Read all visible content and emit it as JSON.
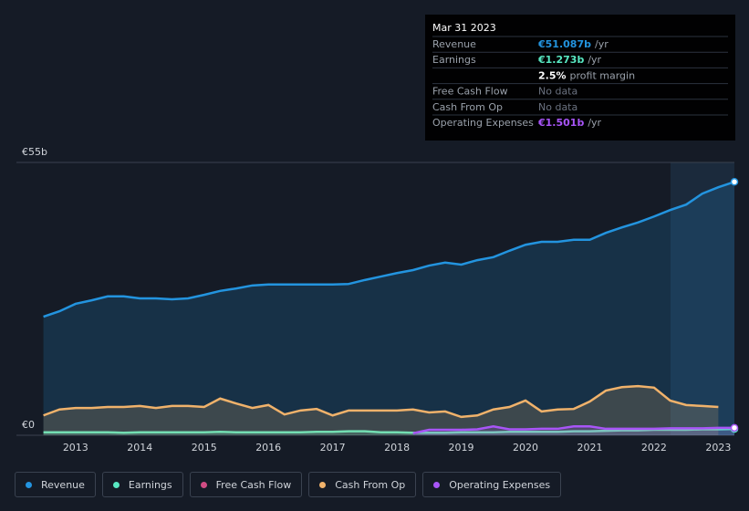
{
  "chart_data": {
    "type": "line",
    "x": [
      2012.5,
      2012.75,
      2013,
      2013.25,
      2013.5,
      2013.75,
      2014,
      2014.25,
      2014.5,
      2014.75,
      2015,
      2015.25,
      2015.5,
      2015.75,
      2016,
      2016.25,
      2016.5,
      2016.75,
      2017,
      2017.25,
      2017.5,
      2017.75,
      2018,
      2018.25,
      2018.5,
      2018.75,
      2019,
      2019.25,
      2019.5,
      2019.75,
      2020,
      2020.25,
      2020.5,
      2020.75,
      2021,
      2021.25,
      2021.5,
      2021.75,
      2022,
      2022.25,
      2022.5,
      2022.75,
      2023,
      2023.25
    ],
    "xlim": [
      2012.08,
      2023.25
    ],
    "xticks": [
      2013,
      2014,
      2015,
      2016,
      2017,
      2018,
      2019,
      2020,
      2021,
      2022,
      2023
    ],
    "ylim": [
      0,
      55
    ],
    "yticks": [
      {
        "value": 0,
        "label": "€0"
      },
      {
        "value": 55,
        "label": "€55b"
      }
    ],
    "series": [
      {
        "name": "Revenue",
        "color": "#2394df",
        "values": [
          23.9,
          25.0,
          26.5,
          27.2,
          28.0,
          28.0,
          27.6,
          27.6,
          27.4,
          27.6,
          28.3,
          29.1,
          29.6,
          30.2,
          30.4,
          30.4,
          30.4,
          30.4,
          30.4,
          30.5,
          31.3,
          32.0,
          32.7,
          33.3,
          34.2,
          34.8,
          34.4,
          35.3,
          35.9,
          37.2,
          38.4,
          39.0,
          39.0,
          39.4,
          39.4,
          40.8,
          41.9,
          42.9,
          44.1,
          45.4,
          46.5,
          48.7,
          50.0,
          51.087
        ]
      },
      {
        "name": "Earnings",
        "color": "#58e8c2",
        "values": [
          0.6,
          0.6,
          0.6,
          0.6,
          0.6,
          0.5,
          0.6,
          0.6,
          0.6,
          0.6,
          0.6,
          0.7,
          0.6,
          0.6,
          0.6,
          0.6,
          0.6,
          0.7,
          0.7,
          0.8,
          0.8,
          0.6,
          0.6,
          0.5,
          0.5,
          0.5,
          0.6,
          0.6,
          0.6,
          0.7,
          0.7,
          0.7,
          0.7,
          0.8,
          0.8,
          0.9,
          1.0,
          1.0,
          1.1,
          1.1,
          1.1,
          1.2,
          1.2,
          1.273
        ]
      },
      {
        "name": "Free Cash Flow",
        "color": "#d14c84",
        "values": [
          null,
          null,
          null,
          null,
          null,
          null,
          null,
          null,
          null,
          null,
          null,
          null,
          null,
          null,
          null,
          null,
          null,
          null,
          null,
          null,
          null,
          null,
          null,
          null,
          null,
          null,
          null,
          null,
          null,
          null,
          null,
          null,
          null,
          null,
          null,
          null,
          null,
          null,
          null,
          null,
          null,
          null,
          null,
          null
        ]
      },
      {
        "name": "Cash From Op",
        "color": "#f0b26b",
        "values": [
          4.0,
          5.2,
          5.5,
          5.5,
          5.7,
          5.7,
          5.9,
          5.5,
          5.9,
          5.9,
          5.7,
          7.4,
          6.4,
          5.5,
          6.1,
          4.2,
          5.0,
          5.3,
          4.0,
          5.0,
          5.0,
          5.0,
          5.0,
          5.2,
          4.6,
          4.8,
          3.7,
          4.0,
          5.2,
          5.7,
          7.0,
          4.8,
          5.2,
          5.3,
          6.8,
          9.0,
          9.7,
          9.9,
          9.6,
          7.0,
          6.1,
          5.9,
          5.7,
          null
        ]
      },
      {
        "name": "Operating Expenses",
        "color": "#a855f7",
        "values": [
          null,
          null,
          null,
          null,
          null,
          null,
          null,
          null,
          null,
          null,
          null,
          null,
          null,
          null,
          null,
          null,
          null,
          null,
          null,
          null,
          null,
          null,
          null,
          0.4,
          1.1,
          1.1,
          1.1,
          1.2,
          1.8,
          1.2,
          1.2,
          1.3,
          1.3,
          1.8,
          1.8,
          1.3,
          1.3,
          1.3,
          1.3,
          1.4,
          1.4,
          1.4,
          1.5,
          1.501
        ]
      }
    ],
    "tooltip": {
      "date": "Mar 31 2023",
      "rows": [
        {
          "label": "Revenue",
          "value": "€51.087b",
          "unit": "/yr"
        },
        {
          "label": "Earnings",
          "value": "€1.273b",
          "unit": "/yr"
        },
        {
          "label": null,
          "value": "2.5%",
          "unit": "profit margin"
        },
        {
          "label": "Free Cash Flow",
          "value": "No data",
          "unit": null
        },
        {
          "label": "Cash From Op",
          "value": "No data",
          "unit": null
        },
        {
          "label": "Operating Expenses",
          "value": "€1.501b",
          "unit": "/yr"
        }
      ]
    }
  }
}
